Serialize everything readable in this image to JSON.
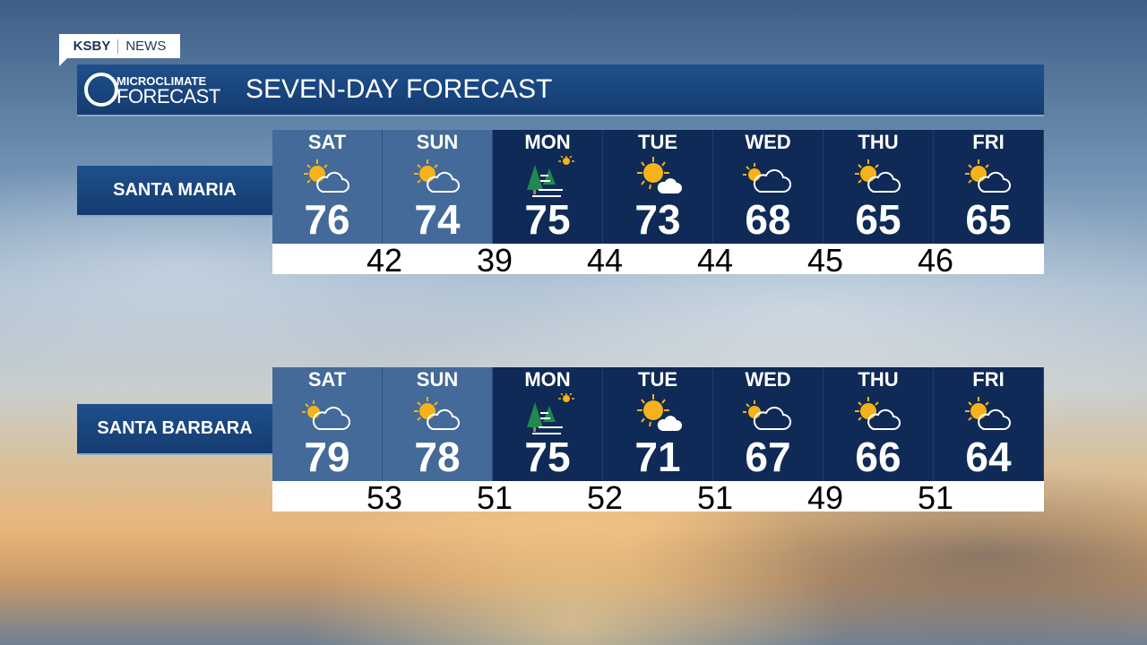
{
  "brand": {
    "station": "KSBY",
    "section": "NEWS"
  },
  "header": {
    "logo_line1": "MICROCLIMATE",
    "logo_line2": "FORECAST",
    "title": "SEVEN-DAY FORECAST"
  },
  "colors": {
    "weekend": "#436a98",
    "weekday": "#0f2a57",
    "sun": "#f5b21b",
    "tree": "#1f8a4c"
  },
  "locations": [
    {
      "name": "SANTA MARIA",
      "days": [
        {
          "day": "SAT",
          "icon": "partly-sunny",
          "high": "76"
        },
        {
          "day": "SUN",
          "icon": "partly-sunny",
          "high": "74"
        },
        {
          "day": "MON",
          "icon": "fog-trees-sun",
          "high": "75"
        },
        {
          "day": "TUE",
          "icon": "mostly-sunny",
          "high": "73"
        },
        {
          "day": "WED",
          "icon": "partly-cloudy",
          "high": "68"
        },
        {
          "day": "THU",
          "icon": "partly-sunny",
          "high": "65"
        },
        {
          "day": "FRI",
          "icon": "partly-sunny",
          "high": "65"
        }
      ],
      "lows": [
        "42",
        "39",
        "44",
        "44",
        "45",
        "46"
      ]
    },
    {
      "name": "SANTA BARBARA",
      "days": [
        {
          "day": "SAT",
          "icon": "partly-cloudy",
          "high": "79"
        },
        {
          "day": "SUN",
          "icon": "partly-sunny",
          "high": "78"
        },
        {
          "day": "MON",
          "icon": "fog-trees-sun",
          "high": "75"
        },
        {
          "day": "TUE",
          "icon": "mostly-sunny",
          "high": "71"
        },
        {
          "day": "WED",
          "icon": "partly-cloudy",
          "high": "67"
        },
        {
          "day": "THU",
          "icon": "partly-sunny",
          "high": "66"
        },
        {
          "day": "FRI",
          "icon": "partly-sunny",
          "high": "64"
        }
      ],
      "lows": [
        "53",
        "51",
        "52",
        "51",
        "49",
        "51"
      ]
    }
  ]
}
